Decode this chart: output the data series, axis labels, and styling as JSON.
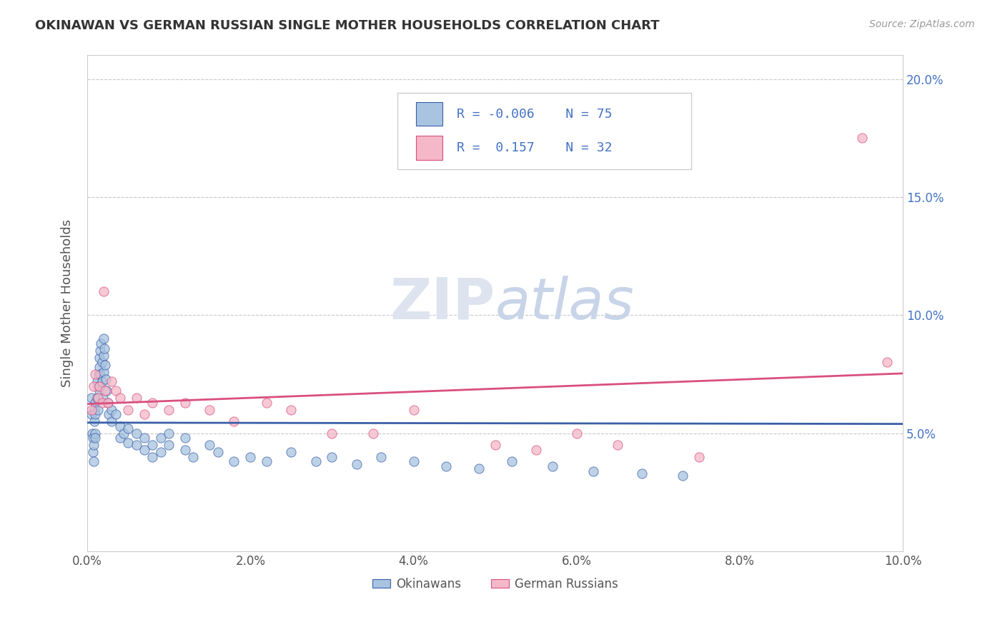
{
  "title": "OKINAWAN VS GERMAN RUSSIAN SINGLE MOTHER HOUSEHOLDS CORRELATION CHART",
  "source": "Source: ZipAtlas.com",
  "ylabel": "Single Mother Households",
  "xlim": [
    0.0,
    0.1
  ],
  "ylim": [
    0.0,
    0.21
  ],
  "xtick_labels": [
    "0.0%",
    "2.0%",
    "4.0%",
    "6.0%",
    "8.0%",
    "10.0%"
  ],
  "xtick_vals": [
    0.0,
    0.02,
    0.04,
    0.06,
    0.08,
    0.1
  ],
  "ytick_labels": [
    "5.0%",
    "10.0%",
    "15.0%",
    "20.0%"
  ],
  "ytick_vals": [
    0.05,
    0.1,
    0.15,
    0.2
  ],
  "legend_label1": "Okinawans",
  "legend_label2": "German Russians",
  "r1": -0.006,
  "n1": 75,
  "r2": 0.157,
  "n2": 32,
  "color_blue": "#a8c4e0",
  "color_pink": "#f4b8c8",
  "color_blue_line": "#3a5fa8",
  "color_pink_line": "#d94f80",
  "color_text_blue": "#4472c4",
  "color_grid": "#c8c8c8",
  "background_color": "#ffffff",
  "blue_x": [
    0.0005,
    0.0005,
    0.0006,
    0.0007,
    0.0007,
    0.0008,
    0.0008,
    0.0009,
    0.0009,
    0.001,
    0.001,
    0.001,
    0.001,
    0.0012,
    0.0012,
    0.0013,
    0.0013,
    0.0014,
    0.0015,
    0.0015,
    0.0015,
    0.0016,
    0.0016,
    0.0017,
    0.0018,
    0.0018,
    0.0019,
    0.002,
    0.002,
    0.002,
    0.0021,
    0.0022,
    0.0023,
    0.0024,
    0.0025,
    0.0026,
    0.003,
    0.003,
    0.0035,
    0.004,
    0.004,
    0.0045,
    0.005,
    0.005,
    0.006,
    0.006,
    0.007,
    0.007,
    0.008,
    0.008,
    0.009,
    0.009,
    0.01,
    0.01,
    0.012,
    0.012,
    0.013,
    0.015,
    0.016,
    0.018,
    0.02,
    0.022,
    0.025,
    0.028,
    0.03,
    0.033,
    0.036,
    0.04,
    0.044,
    0.048,
    0.052,
    0.057,
    0.062,
    0.068,
    0.073
  ],
  "blue_y": [
    0.065,
    0.058,
    0.05,
    0.048,
    0.042,
    0.038,
    0.045,
    0.06,
    0.055,
    0.05,
    0.058,
    0.063,
    0.048,
    0.072,
    0.065,
    0.07,
    0.06,
    0.075,
    0.078,
    0.082,
    0.068,
    0.085,
    0.075,
    0.088,
    0.08,
    0.072,
    0.065,
    0.09,
    0.083,
    0.076,
    0.086,
    0.079,
    0.073,
    0.068,
    0.063,
    0.058,
    0.055,
    0.06,
    0.058,
    0.053,
    0.048,
    0.05,
    0.052,
    0.046,
    0.05,
    0.045,
    0.048,
    0.043,
    0.045,
    0.04,
    0.048,
    0.042,
    0.05,
    0.045,
    0.048,
    0.043,
    0.04,
    0.045,
    0.042,
    0.038,
    0.04,
    0.038,
    0.042,
    0.038,
    0.04,
    0.037,
    0.04,
    0.038,
    0.036,
    0.035,
    0.038,
    0.036,
    0.034,
    0.033,
    0.032
  ],
  "pink_x": [
    0.0005,
    0.0008,
    0.001,
    0.0013,
    0.0015,
    0.0018,
    0.002,
    0.0022,
    0.0025,
    0.003,
    0.0035,
    0.004,
    0.005,
    0.006,
    0.007,
    0.008,
    0.01,
    0.012,
    0.015,
    0.018,
    0.022,
    0.025,
    0.03,
    0.035,
    0.04,
    0.05,
    0.055,
    0.06,
    0.065,
    0.075,
    0.095,
    0.098
  ],
  "pink_y": [
    0.06,
    0.07,
    0.075,
    0.065,
    0.07,
    0.063,
    0.11,
    0.068,
    0.063,
    0.072,
    0.068,
    0.065,
    0.06,
    0.065,
    0.058,
    0.063,
    0.06,
    0.063,
    0.06,
    0.055,
    0.063,
    0.06,
    0.05,
    0.05,
    0.06,
    0.045,
    0.043,
    0.05,
    0.045,
    0.04,
    0.175,
    0.08
  ]
}
